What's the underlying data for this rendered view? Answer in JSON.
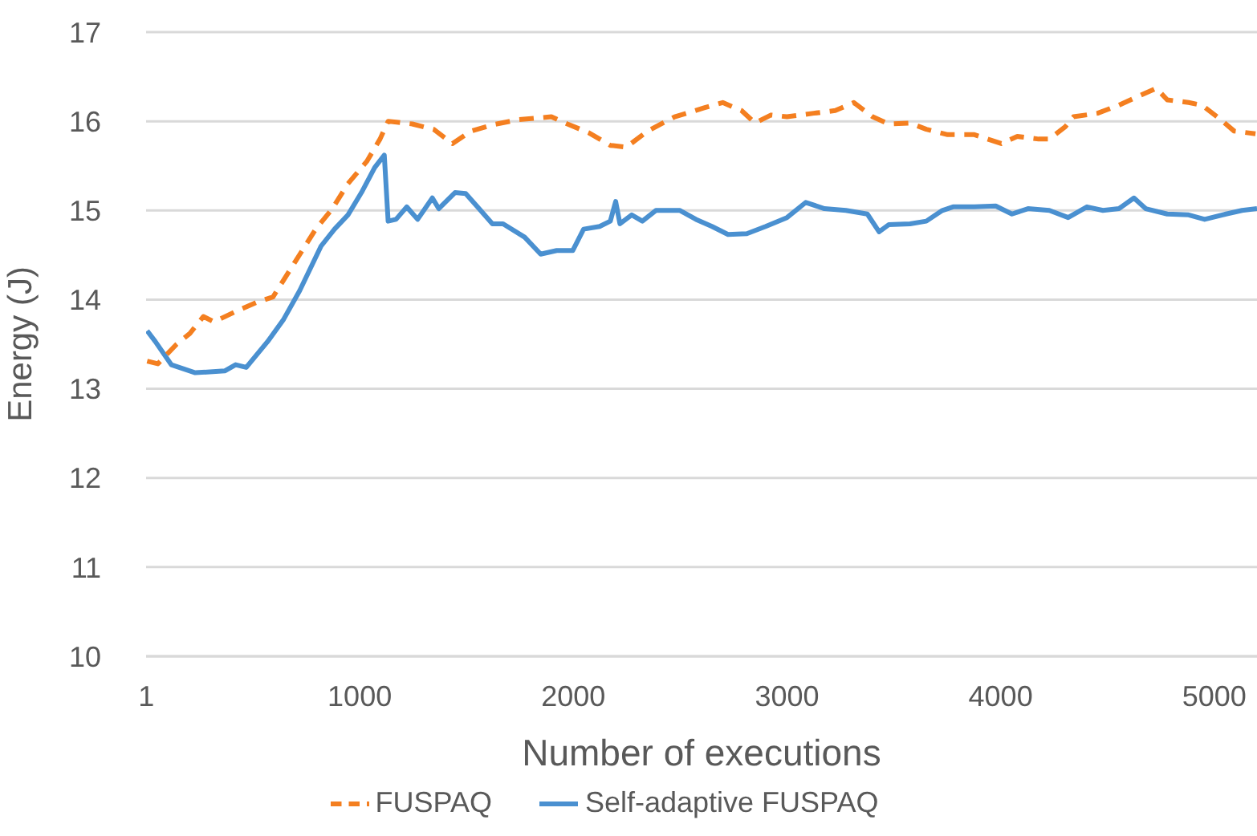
{
  "chart_data": {
    "type": "line",
    "xlabel": "Number of executions",
    "ylabel": "Energy (J)",
    "xlim": [
      0,
      5200
    ],
    "xticks": [
      1,
      1000,
      2000,
      3000,
      4000,
      5000
    ],
    "ylim": [
      10,
      17
    ],
    "yticks": [
      10,
      11,
      12,
      13,
      14,
      15,
      16,
      17
    ],
    "grid": "y",
    "legend": "bottom",
    "marker": "none",
    "series": [
      {
        "name": "Self-adaptive FUSPAQ",
        "color": "#4a90d0",
        "line_style": "solid",
        "x": [
          5,
          43,
          118,
          230,
          368,
          419,
          469,
          569,
          644,
          719,
          819,
          882,
          945,
          1008,
          1070,
          1115,
          1133,
          1170,
          1220,
          1271,
          1340,
          1370,
          1446,
          1496,
          1551,
          1621,
          1671,
          1772,
          1847,
          1922,
          1997,
          2048,
          2123,
          2173,
          2198,
          2218,
          2273,
          2323,
          2386,
          2499,
          2574,
          2649,
          2724,
          2812,
          2900,
          3000,
          3088,
          3175,
          3276,
          3376,
          3431,
          3476,
          3576,
          3652,
          3727,
          3777,
          3877,
          3977,
          4053,
          4128,
          4228,
          4316,
          4404,
          4479,
          4554,
          4624,
          4679,
          4780,
          4880,
          4955,
          5055,
          5130,
          5200
        ],
        "values": [
          13.65,
          13.53,
          13.27,
          13.18,
          13.2,
          13.27,
          13.24,
          13.53,
          13.78,
          14.1,
          14.6,
          14.79,
          14.95,
          15.2,
          15.48,
          15.62,
          14.88,
          14.9,
          15.04,
          14.9,
          15.14,
          15.02,
          15.2,
          15.19,
          15.04,
          14.85,
          14.85,
          14.7,
          14.51,
          14.55,
          14.55,
          14.79,
          14.82,
          14.88,
          15.1,
          14.85,
          14.95,
          14.88,
          15.0,
          15.0,
          14.9,
          14.82,
          14.73,
          14.74,
          14.82,
          14.92,
          15.09,
          15.02,
          15.0,
          14.96,
          14.76,
          14.84,
          14.85,
          14.88,
          15.0,
          15.04,
          15.04,
          15.05,
          14.96,
          15.02,
          15.0,
          14.92,
          15.04,
          15.0,
          15.02,
          15.14,
          15.02,
          14.96,
          14.95,
          14.9,
          14.96,
          15.0,
          15.02
        ]
      },
      {
        "name": "FUSPAQ",
        "color": "#f47f20",
        "line_style": "dashed",
        "x": [
          5,
          55,
          143,
          205,
          268,
          318,
          431,
          519,
          594,
          694,
          794,
          869,
          945,
          1033,
          1095,
          1133,
          1246,
          1346,
          1434,
          1521,
          1621,
          1747,
          1897,
          1972,
          2073,
          2173,
          2248,
          2348,
          2474,
          2612,
          2699,
          2787,
          2850,
          2925,
          3000,
          3125,
          3226,
          3313,
          3401,
          3476,
          3576,
          3652,
          3752,
          3877,
          4003,
          4078,
          4178,
          4228,
          4303,
          4341,
          4454,
          4554,
          4654,
          4729,
          4780,
          4880,
          4942,
          5030,
          5093,
          5193
        ],
        "values": [
          13.31,
          13.28,
          13.5,
          13.62,
          13.81,
          13.75,
          13.88,
          13.97,
          14.03,
          14.41,
          14.79,
          15.01,
          15.3,
          15.55,
          15.8,
          16.0,
          15.97,
          15.91,
          15.75,
          15.89,
          15.96,
          16.02,
          16.05,
          15.97,
          15.87,
          15.73,
          15.71,
          15.89,
          16.05,
          16.15,
          16.21,
          16.12,
          15.98,
          16.07,
          16.05,
          16.09,
          16.12,
          16.21,
          16.05,
          15.97,
          15.98,
          15.91,
          15.85,
          15.85,
          15.75,
          15.83,
          15.8,
          15.8,
          15.94,
          16.05,
          16.09,
          16.18,
          16.29,
          16.37,
          16.24,
          16.21,
          16.18,
          16.02,
          15.89,
          15.86
        ]
      }
    ]
  }
}
